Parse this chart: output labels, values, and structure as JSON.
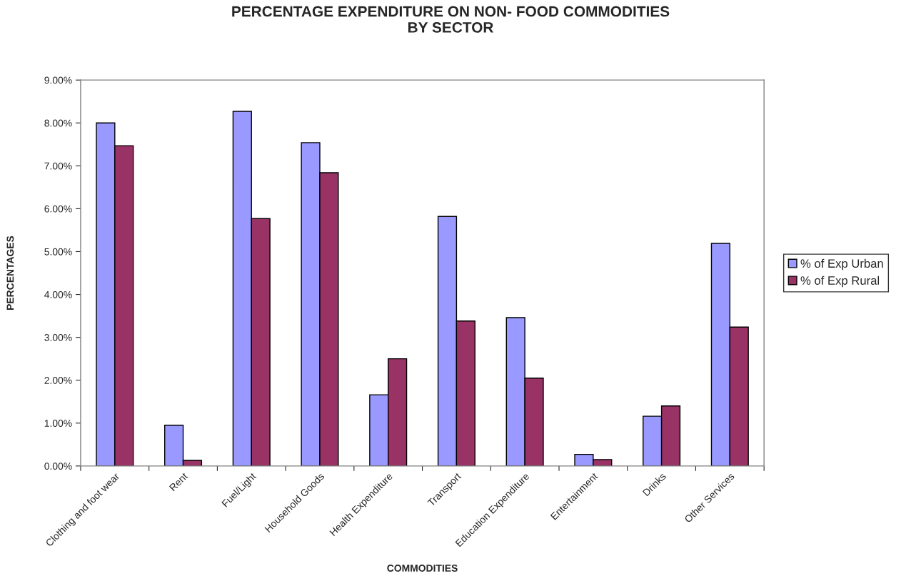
{
  "chart_data": {
    "type": "bar",
    "title": "PERCENTAGE EXPENDITURE ON NON- FOOD COMMODITIES\nBY SECTOR",
    "xlabel": "COMMODITIES",
    "ylabel": "PERCENTAGES",
    "categories": [
      "Clothing and foot wear",
      "Rent",
      "Fuel/Light",
      "Household Goods",
      "Health Expenditure",
      "Transport",
      "Education Expenditure",
      "Entertainment",
      "Drinks",
      "Other Services"
    ],
    "series": [
      {
        "name": "% of Exp Urban",
        "color": "#9999ff",
        "values": [
          8.0,
          0.95,
          8.27,
          7.54,
          1.66,
          5.82,
          3.46,
          0.27,
          1.16,
          5.19
        ]
      },
      {
        "name": "% of Exp Rural",
        "color": "#993366",
        "values": [
          7.47,
          0.13,
          5.77,
          6.84,
          2.5,
          3.38,
          2.05,
          0.15,
          1.4,
          3.24
        ]
      }
    ],
    "ylim": [
      0,
      9
    ],
    "yticks": [
      {
        "value": 0,
        "label": "0.00%"
      },
      {
        "value": 1,
        "label": "1.00%"
      },
      {
        "value": 2,
        "label": "2.00%"
      },
      {
        "value": 3,
        "label": "3.00%"
      },
      {
        "value": 4,
        "label": "4.00%"
      },
      {
        "value": 5,
        "label": "5.00%"
      },
      {
        "value": 6,
        "label": "6.00%"
      },
      {
        "value": 7,
        "label": "7.00%"
      },
      {
        "value": 8,
        "label": "8.00%"
      },
      {
        "value": 9,
        "label": "9.00%"
      }
    ],
    "grid": false,
    "legend": "right"
  }
}
